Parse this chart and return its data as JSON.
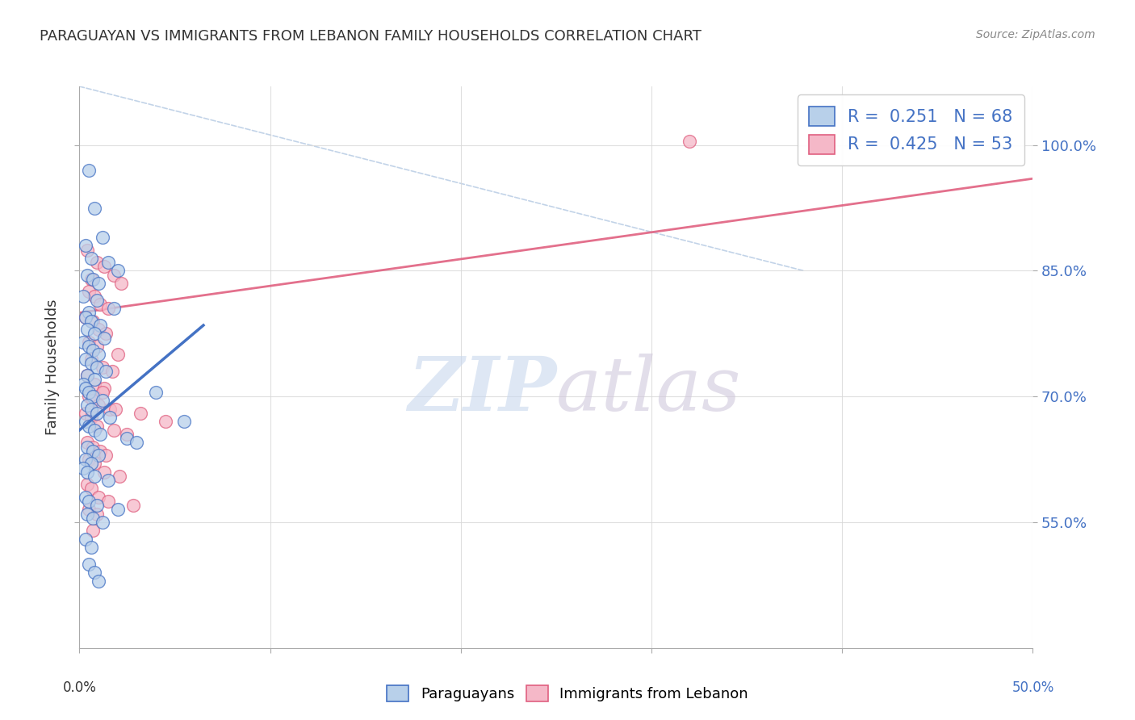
{
  "title": "PARAGUAYAN VS IMMIGRANTS FROM LEBANON FAMILY HOUSEHOLDS CORRELATION CHART",
  "source": "Source: ZipAtlas.com",
  "ylabel": "Family Households",
  "blue_scatter_color": "#b8d0ea",
  "pink_scatter_color": "#f5b8c8",
  "blue_line_color": "#4472c4",
  "pink_line_color": "#e06080",
  "diag_line_color": "#b8cce4",
  "xmin": 0.0,
  "xmax": 50.0,
  "ymin": 40.0,
  "ymax": 107.0,
  "yticks": [
    55.0,
    70.0,
    85.0,
    100.0
  ],
  "xticks": [
    0.0,
    10.0,
    20.0,
    30.0,
    40.0,
    50.0
  ],
  "grid_color": "#d8d8d8",
  "blue_scatter_x": [
    0.5,
    0.8,
    1.2,
    0.3,
    0.6,
    1.5,
    2.0,
    0.4,
    0.7,
    1.0,
    0.2,
    0.9,
    1.8,
    0.5,
    0.3,
    0.6,
    1.1,
    0.4,
    0.8,
    1.3,
    0.2,
    0.5,
    0.7,
    1.0,
    0.3,
    0.6,
    0.9,
    1.4,
    0.4,
    0.8,
    0.2,
    0.3,
    0.5,
    0.7,
    1.2,
    0.4,
    0.6,
    0.9,
    1.6,
    0.3,
    0.5,
    0.8,
    1.1,
    2.5,
    3.0,
    0.4,
    0.7,
    1.0,
    0.3,
    0.6,
    0.2,
    0.4,
    0.8,
    1.5,
    4.0,
    5.5,
    0.3,
    0.5,
    0.9,
    2.0,
    0.4,
    0.7,
    1.2,
    0.3,
    0.6,
    0.5,
    0.8,
    1.0
  ],
  "blue_scatter_y": [
    97.0,
    92.5,
    89.0,
    88.0,
    86.5,
    86.0,
    85.0,
    84.5,
    84.0,
    83.5,
    82.0,
    81.5,
    80.5,
    80.0,
    79.5,
    79.0,
    78.5,
    78.0,
    77.5,
    77.0,
    76.5,
    76.0,
    75.5,
    75.0,
    74.5,
    74.0,
    73.5,
    73.0,
    72.5,
    72.0,
    71.5,
    71.0,
    70.5,
    70.0,
    69.5,
    69.0,
    68.5,
    68.0,
    67.5,
    67.0,
    66.5,
    66.0,
    65.5,
    65.0,
    64.5,
    64.0,
    63.5,
    63.0,
    62.5,
    62.0,
    61.5,
    61.0,
    60.5,
    60.0,
    70.5,
    67.0,
    58.0,
    57.5,
    57.0,
    56.5,
    56.0,
    55.5,
    55.0,
    53.0,
    52.0,
    50.0,
    49.0,
    48.0
  ],
  "pink_scatter_x": [
    0.4,
    0.9,
    1.3,
    0.6,
    1.8,
    2.2,
    0.5,
    0.8,
    1.1,
    1.5,
    0.3,
    0.7,
    1.0,
    1.4,
    0.5,
    0.9,
    2.0,
    0.6,
    1.2,
    1.7,
    0.4,
    0.8,
    1.3,
    0.5,
    0.7,
    1.0,
    1.6,
    0.3,
    0.6,
    0.9,
    1.8,
    2.5,
    3.2,
    4.5,
    0.4,
    0.7,
    1.1,
    1.9,
    0.5,
    0.8,
    1.3,
    2.1,
    0.4,
    0.6,
    1.0,
    1.5,
    2.8,
    0.5,
    0.9,
    1.4,
    0.7,
    1.2,
    32.0
  ],
  "pink_scatter_y": [
    87.5,
    86.0,
    85.5,
    84.0,
    84.5,
    83.5,
    82.5,
    82.0,
    81.0,
    80.5,
    79.5,
    79.0,
    78.0,
    77.5,
    76.5,
    76.0,
    75.0,
    74.5,
    73.5,
    73.0,
    72.5,
    71.5,
    71.0,
    70.0,
    69.5,
    69.0,
    68.5,
    68.0,
    67.5,
    66.5,
    66.0,
    65.5,
    68.0,
    67.0,
    64.5,
    64.0,
    63.5,
    68.5,
    62.5,
    62.0,
    61.0,
    60.5,
    59.5,
    59.0,
    58.0,
    57.5,
    57.0,
    56.5,
    56.0,
    63.0,
    54.0,
    70.5,
    100.5
  ],
  "blue_line": {
    "x0": 0.0,
    "y0": 66.0,
    "x1": 6.5,
    "y1": 78.5
  },
  "pink_line": {
    "x0": 0.0,
    "y0": 80.0,
    "x1": 50.0,
    "y1": 96.0
  },
  "diag_line": {
    "x0": 0.0,
    "y0": 107.0,
    "x1": 38.0,
    "y1": 85.0
  },
  "legend1_r": "0.251",
  "legend1_n": "68",
  "legend2_r": "0.425",
  "legend2_n": "53",
  "right_ytick_color": "#4472c4",
  "text_color": "#333333",
  "source_color": "#888888",
  "watermark_zip_color": "#c8d8ee",
  "watermark_atlas_color": "#d0c8dc"
}
